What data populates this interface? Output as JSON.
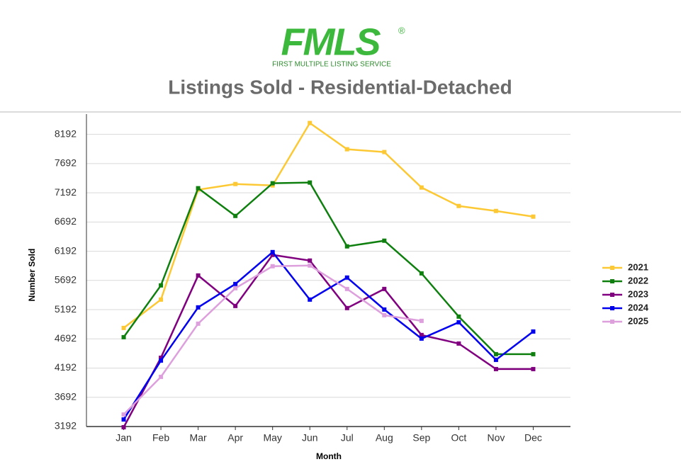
{
  "header": {
    "logo": "FMLS",
    "registered": "®",
    "tagline": "FIRST MULTIPLE LISTING SERVICE"
  },
  "chart_data": {
    "type": "line",
    "title": "Listings Sold - Residential-Detached",
    "xlabel": "Month",
    "ylabel": "Number Sold",
    "categories": [
      "Jan",
      "Feb",
      "Mar",
      "Apr",
      "May",
      "Jun",
      "Jul",
      "Aug",
      "Sep",
      "Oct",
      "Nov",
      "Dec"
    ],
    "series": [
      {
        "name": "2021",
        "color": "#fcc935",
        "values": [
          4879,
          5364,
          7245,
          7342,
          7318,
          8386,
          7937,
          7889,
          7282,
          6966,
          6881,
          6784
        ]
      },
      {
        "name": "2022",
        "color": "#0f800f",
        "values": [
          4721,
          5607,
          7270,
          6796,
          7355,
          7367,
          6275,
          6372,
          5813,
          5073,
          4430,
          4430
        ]
      },
      {
        "name": "2023",
        "color": "#800080",
        "values": [
          3180,
          4369,
          5777,
          5255,
          6129,
          6032,
          5219,
          5546,
          4758,
          4612,
          4175,
          4175
        ]
      },
      {
        "name": "2024",
        "color": "#0000ee",
        "values": [
          3313,
          4321,
          5231,
          5631,
          6177,
          5364,
          5741,
          5194,
          4697,
          4976,
          4333,
          4818
        ]
      },
      {
        "name": "2025",
        "color": "#dda0dd",
        "values": [
          3398,
          4042,
          4952,
          5559,
          5935,
          5947,
          5546,
          5097,
          5000,
          null,
          null,
          null
        ]
      }
    ],
    "ylim": [
      3192,
      8442
    ],
    "yticks": [
      3192,
      3692,
      4192,
      4692,
      5192,
      5692,
      6192,
      6692,
      7192,
      7692,
      8192
    ],
    "grid": true,
    "legend": "right"
  }
}
